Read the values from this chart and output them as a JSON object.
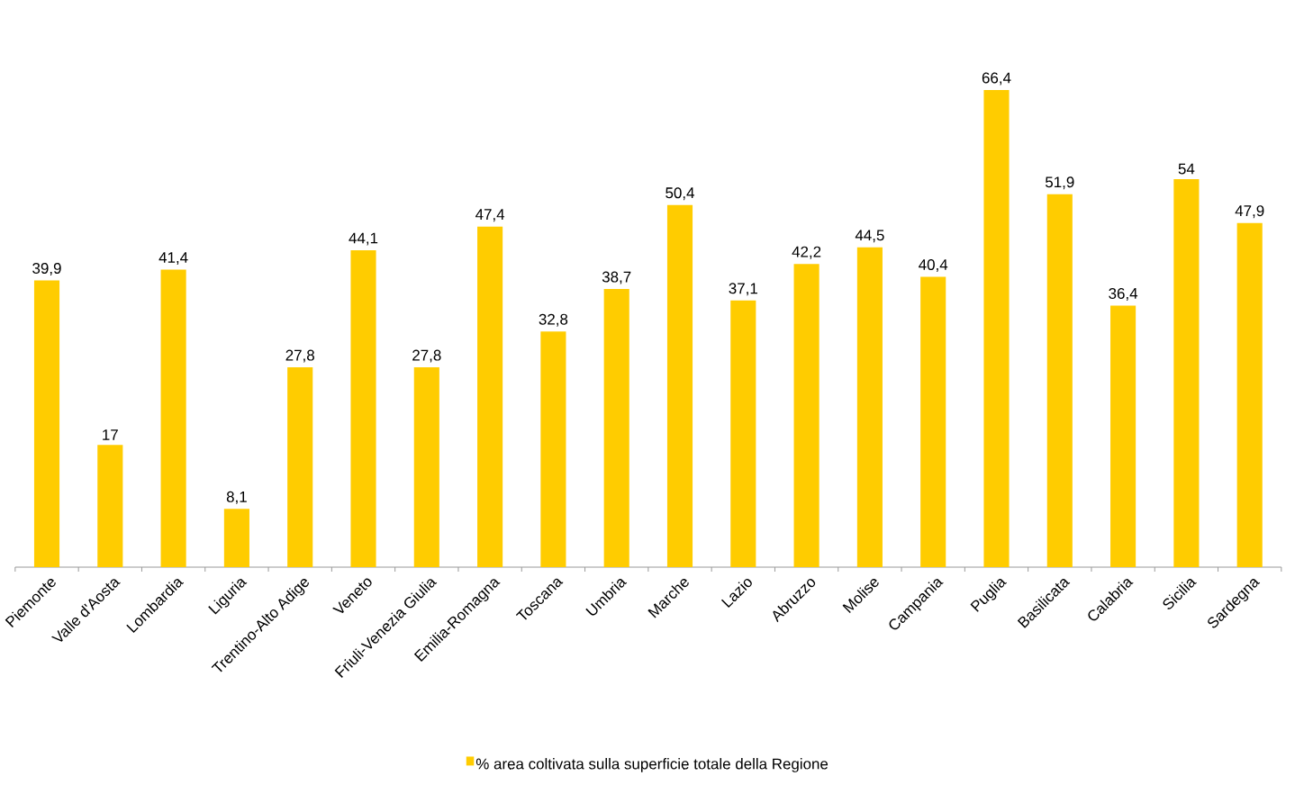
{
  "chart_data": {
    "type": "bar",
    "categories": [
      "Piemonte",
      "Valle d'Aosta",
      "Lombardia",
      "Liguria",
      "Trentino-Alto Adige",
      "Veneto",
      "Friuli-Venezia Giulia",
      "Emilia-Romagna",
      "Toscana",
      "Umbria",
      "Marche",
      "Lazio",
      "Abruzzo",
      "Molise",
      "Campania",
      "Puglia",
      "Basilicata",
      "Calabria",
      "Sicilia",
      "Sardegna"
    ],
    "series": [
      {
        "name": "% area coltivata sulla superficie totale della Regione",
        "color": "#ffcc00",
        "values": [
          39.9,
          17,
          41.4,
          8.1,
          27.8,
          44.1,
          27.8,
          47.4,
          32.8,
          38.7,
          50.4,
          37.1,
          42.2,
          44.5,
          40.4,
          66.4,
          51.9,
          36.4,
          54,
          47.9
        ],
        "value_labels": [
          "39,9",
          "17",
          "41,4",
          "8,1",
          "27,8",
          "44,1",
          "27,8",
          "47,4",
          "32,8",
          "38,7",
          "50,4",
          "37,1",
          "42,2",
          "44,5",
          "40,4",
          "66,4",
          "51,9",
          "36,4",
          "54",
          "47,9"
        ]
      }
    ],
    "legend": "bottom"
  }
}
